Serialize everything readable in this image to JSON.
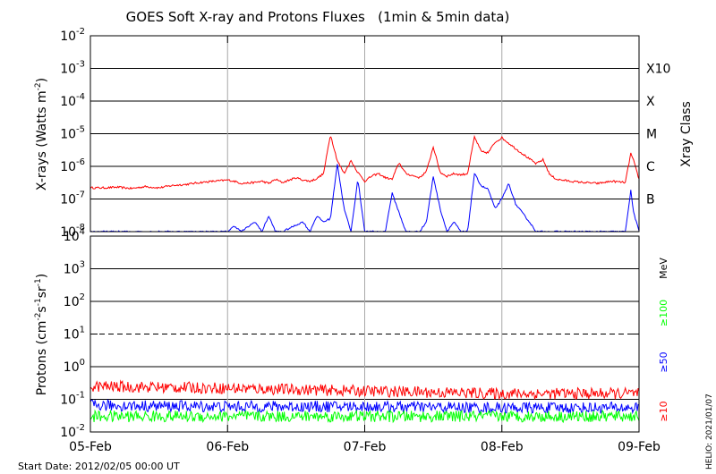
{
  "chart_data": [
    {
      "type": "line",
      "title": "GOES Soft X-ray and Protons Fluxes   (1min & 5min data)",
      "ylabel": "X-rays (Watts m-2)",
      "ylabel_parts": {
        "main": "X-rays (Watts m",
        "exp": "-2",
        "close": ")"
      },
      "yscale": "log",
      "ylim": [
        1e-08,
        0.01
      ],
      "y_ticks": [
        {
          "value": 1e-08,
          "base": "10",
          "exp": "-8"
        },
        {
          "value": 1e-07,
          "base": "10",
          "exp": "-7"
        },
        {
          "value": 1e-06,
          "base": "10",
          "exp": "-6"
        },
        {
          "value": 1e-05,
          "base": "10",
          "exp": "-5"
        },
        {
          "value": 0.0001,
          "base": "10",
          "exp": "-4"
        },
        {
          "value": 0.001,
          "base": "10",
          "exp": "-3"
        },
        {
          "value": 0.01,
          "base": "10",
          "exp": "-2"
        }
      ],
      "right_axis_label": "Xray Class",
      "right_ticks": [
        {
          "value": 1e-07,
          "label": "B"
        },
        {
          "value": 1e-06,
          "label": "C"
        },
        {
          "value": 1e-05,
          "label": "M"
        },
        {
          "value": 0.0001,
          "label": "X"
        },
        {
          "value": 0.001,
          "label": "X10"
        }
      ],
      "grid": true,
      "series": [
        {
          "color": "#ff0000",
          "x": [
            0,
            0.1,
            0.2,
            0.3,
            0.4,
            0.5,
            0.6,
            0.7,
            0.8,
            0.9,
            1.0,
            1.05,
            1.1,
            1.2,
            1.25,
            1.3,
            1.35,
            1.4,
            1.5,
            1.55,
            1.6,
            1.65,
            1.7,
            1.75,
            1.8,
            1.85,
            1.9,
            1.95,
            2.0,
            2.05,
            2.1,
            2.15,
            2.2,
            2.25,
            2.3,
            2.4,
            2.45,
            2.5,
            2.55,
            2.6,
            2.65,
            2.7,
            2.75,
            2.8,
            2.85,
            2.9,
            2.95,
            3.0,
            3.1,
            3.2,
            3.25,
            3.3,
            3.35,
            3.4,
            3.5,
            3.6,
            3.7,
            3.8,
            3.9,
            3.94,
            3.96,
            4.0
          ],
          "values": [
            2.2e-07,
            2.2e-07,
            2.3e-07,
            2.1e-07,
            2.4e-07,
            2.2e-07,
            2.6e-07,
            2.8e-07,
            3.2e-07,
            3.5e-07,
            3.8e-07,
            3.5e-07,
            3e-07,
            3.2e-07,
            3.5e-07,
            3e-07,
            4e-07,
            3.2e-07,
            4.5e-07,
            3.8e-07,
            3.5e-07,
            4.2e-07,
            6e-07,
            9.5e-06,
            1.5e-06,
            6e-07,
            1.5e-06,
            6.5e-07,
            3.5e-07,
            5e-07,
            6e-07,
            4.5e-07,
            4e-07,
            1.3e-06,
            6e-07,
            4.5e-07,
            7e-07,
            4e-06,
            6.5e-07,
            5e-07,
            6e-07,
            5.5e-07,
            6e-07,
            8e-06,
            2.8e-06,
            2.6e-06,
            5.5e-06,
            7.5e-06,
            3.5e-06,
            1.7e-06,
            1.2e-06,
            1.6e-06,
            5.5e-07,
            4e-07,
            3.5e-07,
            3.2e-07,
            3e-07,
            3.5e-07,
            3.2e-07,
            2.5e-06,
            1.5e-06,
            4e-07
          ]
        },
        {
          "color": "#0000ff",
          "x": [
            0,
            0.9,
            1.0,
            1.05,
            1.1,
            1.2,
            1.25,
            1.3,
            1.35,
            1.4,
            1.55,
            1.6,
            1.65,
            1.7,
            1.75,
            1.8,
            1.85,
            1.9,
            1.95,
            2.0,
            2.05,
            2.1,
            2.15,
            2.2,
            2.3,
            2.4,
            2.45,
            2.5,
            2.55,
            2.6,
            2.65,
            2.7,
            2.75,
            2.8,
            2.85,
            2.9,
            2.95,
            3.0,
            3.05,
            3.1,
            3.2,
            3.25,
            3.3,
            3.4,
            3.5,
            3.6,
            3.7,
            3.8,
            3.9,
            3.94,
            3.96,
            4.0
          ],
          "values": [
            1e-08,
            1e-08,
            1e-08,
            1.5e-08,
            1e-08,
            2e-08,
            1e-08,
            3e-08,
            1e-08,
            1e-08,
            2e-08,
            1e-08,
            3e-08,
            2e-08,
            2.5e-08,
            1.2e-06,
            5e-08,
            1e-08,
            4e-07,
            1e-08,
            1e-08,
            1e-08,
            1e-08,
            1.5e-07,
            1e-08,
            1e-08,
            2e-08,
            5e-07,
            5e-08,
            1e-08,
            2e-08,
            1e-08,
            1e-08,
            6e-07,
            2.5e-07,
            2e-07,
            5e-08,
            1e-07,
            3e-07,
            7e-08,
            2e-08,
            1e-08,
            1e-08,
            1e-08,
            1e-08,
            1e-08,
            1e-08,
            1e-08,
            1e-08,
            1.8e-07,
            4e-08,
            1e-08
          ]
        }
      ]
    },
    {
      "type": "line",
      "ylabel": "Protons (cm-2s-1sr-1)",
      "ylabel_parts": {
        "main": "Protons (cm",
        "e1": "-2",
        "mid1": "s",
        "e2": "-1",
        "mid2": "sr",
        "e3": "-1",
        "close": ")"
      },
      "yscale": "log",
      "ylim": [
        0.01,
        10000
      ],
      "y_ticks": [
        {
          "value": 0.01,
          "base": "10",
          "exp": "-2"
        },
        {
          "value": 0.1,
          "base": "10",
          "exp": "-1"
        },
        {
          "value": 1,
          "base": "10",
          "exp": "0"
        },
        {
          "value": 10,
          "base": "10",
          "exp": "1"
        },
        {
          "value": 100,
          "base": "10",
          "exp": "2"
        },
        {
          "value": 1000,
          "base": "10",
          "exp": "3"
        },
        {
          "value": 10000,
          "base": "10",
          "exp": "4"
        }
      ],
      "threshold_line": 10,
      "right_labels": [
        {
          "text": "MeV",
          "color": "#000000"
        },
        {
          "text": "≥100",
          "color": "#00ff00"
        },
        {
          "text": "≥50",
          "color": "#0000ff"
        },
        {
          "text": "≥10",
          "color": "#ff0000"
        }
      ],
      "series": [
        {
          "name": "≥10",
          "color": "#ff0000",
          "x": [
            0,
            1,
            2,
            3,
            4
          ],
          "values": [
            0.25,
            0.22,
            0.18,
            0.15,
            0.15
          ]
        },
        {
          "name": "≥50",
          "color": "#0000ff",
          "x": [
            0,
            1,
            2,
            3,
            4
          ],
          "values": [
            0.065,
            0.06,
            0.06,
            0.055,
            0.055
          ]
        },
        {
          "name": "≥100",
          "color": "#00ff00",
          "x": [
            0,
            1,
            2,
            3,
            4
          ],
          "values": [
            0.03,
            0.03,
            0.03,
            0.03,
            0.03
          ]
        }
      ]
    }
  ],
  "x_axis": {
    "ticks": [
      {
        "value": 0,
        "label": "05-Feb"
      },
      {
        "value": 1,
        "label": "06-Feb"
      },
      {
        "value": 2,
        "label": "07-Feb"
      },
      {
        "value": 3,
        "label": "08-Feb"
      },
      {
        "value": 4,
        "label": "09-Feb"
      }
    ]
  },
  "start_date": "Start Date: 2012/02/05 00:00 UT",
  "credit": "HELIO: 2021/01/07"
}
